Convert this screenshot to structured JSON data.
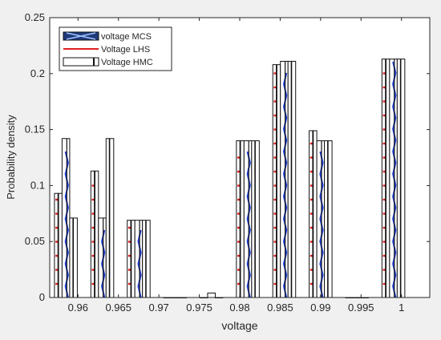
{
  "chart_data": {
    "type": "bar",
    "xlabel": "voltage",
    "ylabel": "Probability density",
    "ylim": [
      0,
      0.25
    ],
    "xlim": [
      0.9565,
      1.0035
    ],
    "y_ticks": [
      "0",
      "0.05",
      "0.1",
      "0.15",
      "0.2",
      "0.25"
    ],
    "x_ticks": [
      "0.96",
      "0.965",
      "0.97",
      "0.975",
      "0.98",
      "0.985",
      "0.99",
      "0.995",
      "1"
    ],
    "x_tick_values": [
      0.96,
      0.965,
      0.97,
      0.975,
      0.98,
      0.985,
      0.99,
      0.995,
      1.0
    ],
    "grid": false,
    "legend_position": "top-left",
    "bin_centers": [
      0.9585,
      0.963,
      0.9675,
      0.972,
      0.9765,
      0.981,
      0.9855,
      0.99,
      0.9945,
      0.999
    ],
    "series": [
      {
        "name": "Voltage LHS",
        "values": [
          0.093,
          0.113,
          0.069,
          0.0,
          0.0,
          0.14,
          0.208,
          0.149,
          0.0,
          0.213
        ],
        "color": "#e02020",
        "pattern": "red-dashes"
      },
      {
        "name": "voltage MCS",
        "values": [
          0.142,
          0.071,
          0.069,
          0.0,
          0.004,
          0.14,
          0.211,
          0.14,
          0.0,
          0.213
        ],
        "color": "#1f3fd6",
        "pattern": "blue-chevrons"
      },
      {
        "name": "Voltage HMC",
        "values": [
          0.071,
          0.142,
          0.069,
          0.0,
          0.0,
          0.14,
          0.211,
          0.14,
          0.0,
          0.213
        ],
        "color": "#ffffff",
        "pattern": "white-stripes"
      }
    ],
    "legend": [
      {
        "label": "voltage MCS",
        "series": 1
      },
      {
        "label": "Voltage LHS",
        "series": 0
      },
      {
        "label": "Voltage HMC",
        "series": 2
      }
    ]
  }
}
